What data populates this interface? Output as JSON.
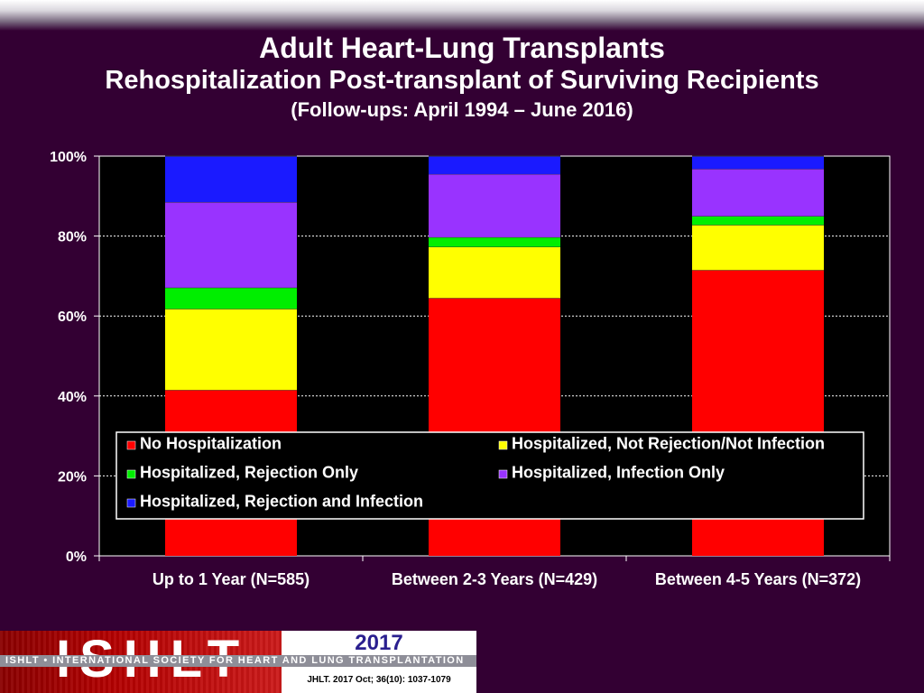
{
  "header": {
    "title": "Adult Heart-Lung Transplants",
    "subtitle": "Rehospitalization Post-transplant of Surviving Recipients",
    "subtitle2": "(Follow-ups: April 1994 – June 2016)"
  },
  "footer": {
    "logo_text": "ISHLT",
    "logo_band": "ISHLT • INTERNATIONAL SOCIETY FOR HEART AND LUNG TRANSPLANTATION",
    "year": "2017",
    "citation": "JHLT. 2017 Oct; 36(10): 1037-1079"
  },
  "colors": {
    "background": "#330033",
    "plot_background": "#000000"
  },
  "chart_data": {
    "type": "bar",
    "stacked": true,
    "categories": [
      "Up to 1 Year (N=585)",
      "Between 2-3 Years (N=429)",
      "Between 4-5 Years (N=372)"
    ],
    "series": [
      {
        "name": "No Hospitalization",
        "color": "#ff0000",
        "values": [
          41.5,
          64.5,
          71.5
        ]
      },
      {
        "name": "Hospitalized, Not Rejection/Not Infection",
        "color": "#ffff00",
        "values": [
          20.3,
          12.8,
          11.3
        ]
      },
      {
        "name": "Hospitalized, Rejection Only",
        "color": "#00ee00",
        "values": [
          5.3,
          2.4,
          2.2
        ]
      },
      {
        "name": "Hospitalized, Infection Only",
        "color": "#9933ff",
        "values": [
          21.4,
          15.8,
          11.8
        ]
      },
      {
        "name": "Hospitalized, Rejection and Infection",
        "color": "#1a1aff",
        "values": [
          11.5,
          4.5,
          3.2
        ]
      }
    ],
    "ylim": [
      0,
      100
    ],
    "yticks": [
      "0%",
      "20%",
      "40%",
      "60%",
      "80%",
      "100%"
    ],
    "ytick_values": [
      0,
      20,
      40,
      60,
      80,
      100
    ],
    "grid": true,
    "legend_position": "bottom-center inside plot"
  }
}
